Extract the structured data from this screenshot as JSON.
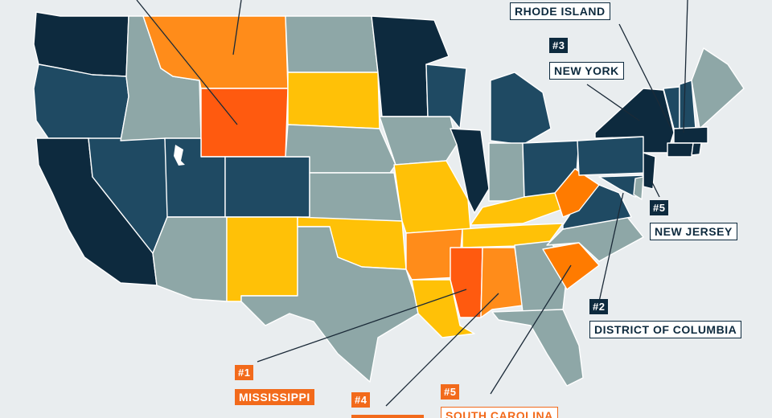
{
  "colors": {
    "background": "#e9edef",
    "darkest": "#0d2a3e",
    "dark": "#1f4a63",
    "muted": "#8ea7a7",
    "yellow": "#ffc107",
    "light_orange": "#ff8c1a",
    "orange": "#ff7b00",
    "red_orange": "#ff5a0f"
  },
  "callouts": [
    {
      "id": "rhode-island",
      "rank": "",
      "name": "RHODE ISLAND",
      "style": "dark"
    },
    {
      "id": "new-york",
      "rank": "#3",
      "name": "NEW YORK",
      "style": "dark"
    },
    {
      "id": "new-jersey",
      "rank": "#5",
      "name": "NEW JERSEY",
      "style": "dark"
    },
    {
      "id": "dc",
      "rank": "#2",
      "name": "DISTRICT OF COLUMBIA",
      "style": "dark"
    },
    {
      "id": "mississippi",
      "rank": "#1",
      "name": "MISSISSIPPI",
      "style": "orange"
    },
    {
      "id": "alabama",
      "rank": "#4",
      "name": "",
      "style": "orange"
    },
    {
      "id": "south-carolina",
      "rank": "#5",
      "name": "SOUTH CAROLINA",
      "style": "orange-outline"
    }
  ]
}
